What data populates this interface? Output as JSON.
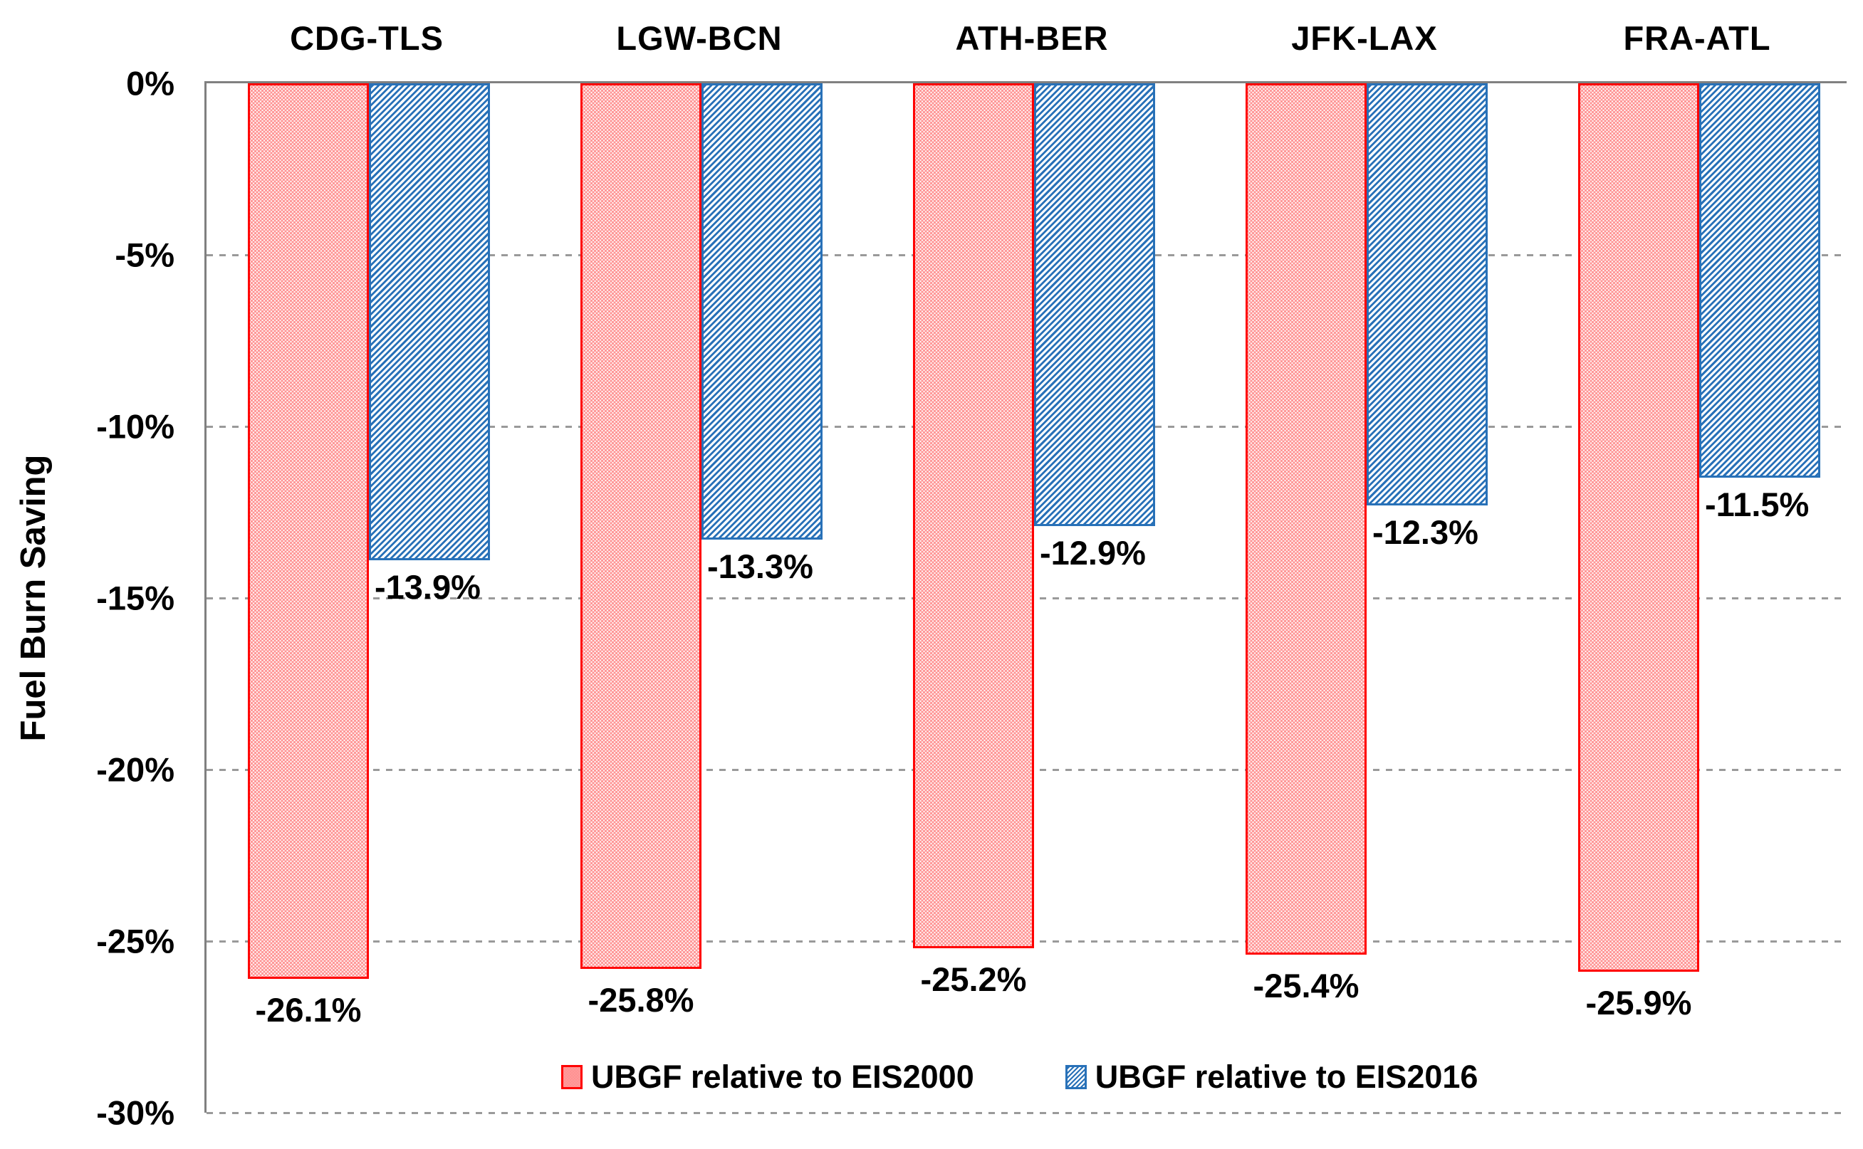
{
  "chart_data": {
    "type": "bar",
    "orientation": "vertical-negative",
    "title": "",
    "ylabel": "Fuel Burn Saving",
    "xlabel": "",
    "ylim": [
      -30,
      0
    ],
    "yticks": [
      "0%",
      "-5%",
      "-10%",
      "-15%",
      "-20%",
      "-25%",
      "-30%"
    ],
    "ytick_values": [
      0,
      -5,
      -10,
      -15,
      -20,
      -25,
      -30
    ],
    "grid": "horizontal-dashed",
    "legend_position": "bottom-center",
    "categories": [
      "CDG-TLS",
      "LGW-BCN",
      "ATH-BER",
      "JFK-LAX",
      "FRA-ATL"
    ],
    "series": [
      {
        "name": "UBGF relative to EIS2000",
        "color": "#FF0000",
        "pattern": "dots",
        "values": [
          -26.1,
          -25.8,
          -25.2,
          -25.4,
          -25.9
        ],
        "labels": [
          "-26.1%",
          "-25.8%",
          "-25.2%",
          "-25.4%",
          "-25.9%"
        ],
        "label_align": "center"
      },
      {
        "name": "UBGF relative to EIS2016",
        "color": "#2871B8",
        "pattern": "hatch",
        "values": [
          -13.9,
          -13.3,
          -12.9,
          -12.3,
          -11.5
        ],
        "labels": [
          "-13.9%",
          "-13.3%",
          "-12.9%",
          "-12.3%",
          "-11.5%"
        ],
        "label_align": "left"
      }
    ],
    "colors": {
      "axis_line": "#808080",
      "gridline": "#9a9a9a",
      "text": "#000000",
      "series1_border": "#FF0000",
      "series2_border": "#2871B8"
    }
  }
}
